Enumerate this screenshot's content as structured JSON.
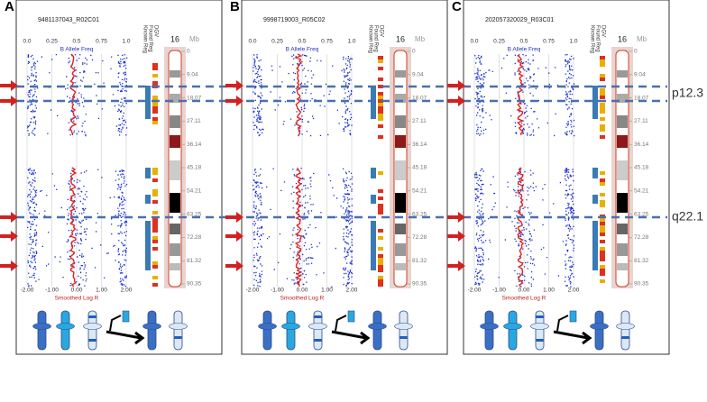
{
  "panels": [
    {
      "label": "A",
      "sample": "9481137043_R02C01",
      "top_axis_label": "B Allele Freq",
      "top_ticks": [
        "0.0",
        "0.25",
        "0.5",
        "0.75",
        "1.0"
      ],
      "bottom_axis_label": "Smoothed Log R",
      "bottom_ticks": [
        "-2.00",
        "-1.00",
        "0.00",
        "1.00",
        "2.00"
      ],
      "track_labels": [
        "Known Reg",
        "Found Reg",
        "DGV"
      ],
      "chromosome": "16",
      "unit": "Mb",
      "mb_ticks": [
        "0",
        "9.04",
        "18.07",
        "27.11",
        "36.14",
        "45.18",
        "54.21",
        "63.25",
        "72.28",
        "81.32",
        "90.35"
      ]
    },
    {
      "label": "B",
      "sample": "9998719003_R05C02",
      "top_axis_label": "B Allele Freq",
      "top_ticks": [
        "0.0",
        "0.25",
        "0.5",
        "0.75",
        "1.0"
      ],
      "bottom_axis_label": "Smoothed Log R",
      "bottom_ticks": [
        "-2.00",
        "-1.00",
        "0.00",
        "1.00",
        "2.00"
      ],
      "track_labels": [
        "Known Reg",
        "Found Reg",
        "DGV"
      ],
      "chromosome": "16",
      "unit": "Mb",
      "mb_ticks": [
        "0",
        "9.04",
        "18.07",
        "27.11",
        "36.14",
        "45.18",
        "54.21",
        "63.25",
        "72.28",
        "81.32",
        "90.35"
      ]
    },
    {
      "label": "C",
      "sample": "202057320029_R03C01",
      "top_axis_label": "B Allele Freq",
      "top_ticks": [
        "0.0",
        "0.25",
        "0.5",
        "0.75",
        "1.0"
      ],
      "bottom_axis_label": "Smoothed Log R",
      "bottom_ticks": [
        "-2.00",
        "-1.00",
        "0.00",
        "1.00",
        "2.00"
      ],
      "track_labels": [
        "Known Reg",
        "Found Reg",
        "DGV"
      ],
      "chromosome": "16",
      "unit": "Mb",
      "mb_ticks": [
        "0",
        "9.04",
        "18.07",
        "27.11",
        "36.14",
        "45.18",
        "54.21",
        "63.25",
        "72.28",
        "81.32",
        "90.35"
      ]
    }
  ],
  "annotations": [
    "p12.3",
    "q22.1"
  ]
}
